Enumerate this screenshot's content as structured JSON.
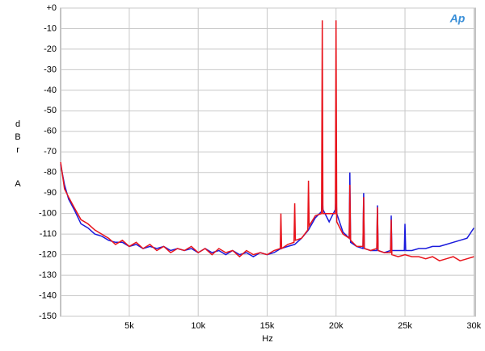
{
  "chart_data": {
    "type": "line",
    "logo": "Ap",
    "x_label": "Hz",
    "y_label": "dBr",
    "y_label_2": "A",
    "xlim": [
      20,
      30100
    ],
    "ylim": [
      -150,
      0
    ],
    "xticks": [
      {
        "value": 5000,
        "label": "5k"
      },
      {
        "value": 10000,
        "label": "10k"
      },
      {
        "value": 15000,
        "label": "15k"
      },
      {
        "value": 20000,
        "label": "20k"
      },
      {
        "value": 25000,
        "label": "25k"
      },
      {
        "value": 30000,
        "label": "30k"
      }
    ],
    "yticks": [
      {
        "value": 0,
        "label": "+0"
      },
      -10,
      -20,
      -30,
      -40,
      -50,
      -60,
      -70,
      -80,
      -90,
      -100,
      -110,
      -120,
      -130,
      -140,
      -150
    ],
    "grid": true,
    "series": [
      {
        "color": "#1a1adc",
        "x": [
          20,
          300,
          600,
          1000,
          1500,
          2000,
          2500,
          3000,
          3500,
          4000,
          4500,
          5000,
          5500,
          6000,
          6500,
          7000,
          7500,
          8000,
          8500,
          9000,
          9500,
          10000,
          10500,
          11000,
          11500,
          12000,
          12500,
          13000,
          13500,
          14000,
          14500,
          15000,
          15500,
          16000,
          16500,
          17000,
          17500,
          18000,
          18500,
          18950,
          19000,
          19050,
          19500,
          19950,
          20000,
          20050,
          20500,
          20950,
          21000,
          21050,
          21500,
          21950,
          22000,
          22050,
          22500,
          22950,
          23000,
          23050,
          23500,
          23950,
          24000,
          24050,
          24500,
          24950,
          25000,
          25050,
          25500,
          26000,
          26500,
          27000,
          27500,
          28000,
          28500,
          29000,
          29500,
          30000
        ],
        "values": [
          -76,
          -86,
          -93,
          -98,
          -105,
          -107,
          -110,
          -111,
          -113,
          -114,
          -114,
          -116,
          -115,
          -117,
          -116,
          -117,
          -116,
          -118,
          -117,
          -118,
          -117,
          -119,
          -117,
          -119,
          -118,
          -120,
          -118,
          -120,
          -119,
          -121,
          -119,
          -120,
          -119,
          -117,
          -116,
          -115,
          -112,
          -108,
          -102,
          -99,
          -91,
          -98,
          -104,
          -98,
          -91,
          -100,
          -109,
          -112,
          -80,
          -114,
          -116,
          -117,
          -90,
          -117,
          -118,
          -118,
          -96,
          -118,
          -119,
          -118,
          -101,
          -118,
          -118,
          -118,
          -105,
          -118,
          -118,
          -117,
          -117,
          -116,
          -116,
          -115,
          -114,
          -113,
          -112,
          -107
        ]
      },
      {
        "color": "#e8141c",
        "x": [
          20,
          300,
          600,
          1000,
          1500,
          2000,
          2500,
          3000,
          3500,
          4000,
          4500,
          5000,
          5500,
          6000,
          6500,
          7000,
          7500,
          8000,
          8500,
          9000,
          9500,
          10000,
          10500,
          11000,
          11500,
          12000,
          12500,
          13000,
          13500,
          14000,
          14500,
          15000,
          15500,
          15950,
          16000,
          16050,
          16500,
          16950,
          17000,
          17050,
          17500,
          17950,
          18000,
          18050,
          18500,
          18950,
          19000,
          19050,
          19500,
          19950,
          20000,
          20050,
          20500,
          20950,
          21000,
          21050,
          21500,
          21950,
          22000,
          22050,
          22500,
          22950,
          23000,
          23050,
          23500,
          23950,
          24000,
          24050,
          24500,
          25000,
          25500,
          26000,
          26500,
          27000,
          27500,
          28000,
          28500,
          29000,
          29500,
          30000
        ],
        "values": [
          -75,
          -88,
          -92,
          -97,
          -103,
          -105,
          -108,
          -110,
          -112,
          -115,
          -113,
          -116,
          -114,
          -117,
          -115,
          -118,
          -116,
          -119,
          -117,
          -118,
          -116,
          -119,
          -117,
          -120,
          -117,
          -119,
          -118,
          -121,
          -118,
          -120,
          -119,
          -120,
          -118,
          -117,
          -100,
          -117,
          -115,
          -114,
          -95,
          -113,
          -112,
          -108,
          -84,
          -106,
          -101,
          -100,
          -6,
          -100,
          -100,
          -100,
          -6,
          -104,
          -110,
          -112,
          -86,
          -113,
          -116,
          -116,
          -92,
          -117,
          -118,
          -117,
          -97,
          -118,
          -119,
          -119,
          -103,
          -120,
          -121,
          -120,
          -121,
          -121,
          -122,
          -121,
          -123,
          -122,
          -121,
          -123,
          -122,
          -121
        ]
      }
    ]
  }
}
